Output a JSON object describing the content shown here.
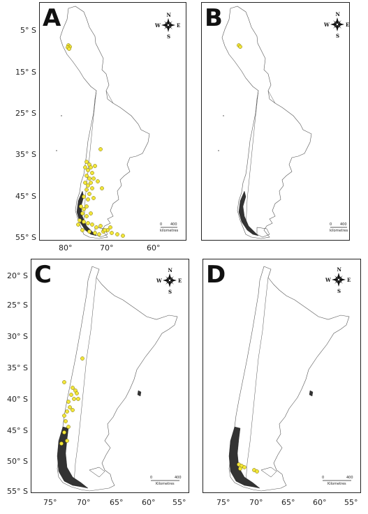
{
  "figure": {
    "panels": [
      {
        "id": "A",
        "label": "A",
        "y_ticks": [
          "5° S",
          "15° S",
          "25° S",
          "35° S",
          "45° S",
          "55° S"
        ],
        "x_ticks": [
          "80°",
          "70°",
          "60°"
        ],
        "compass": {
          "n": "N",
          "s": "S",
          "e": "E",
          "w": "W"
        },
        "scale": {
          "zero": "0",
          "max": "400",
          "unit": "kilometres"
        },
        "occurrence_color": "#f2e63a"
      },
      {
        "id": "B",
        "label": "B",
        "compass": {
          "n": "N",
          "s": "S",
          "e": "E",
          "w": "W"
        },
        "scale": {
          "zero": "0",
          "max": "400",
          "unit": "kilometres"
        },
        "occurrence_color": "#f2e63a"
      },
      {
        "id": "C",
        "label": "C",
        "y_ticks": [
          "20° S",
          "25° S",
          "30° S",
          "35° S",
          "40° S",
          "45° S",
          "50° S",
          "55° S"
        ],
        "x_ticks": [
          "75°",
          "70°",
          "65°",
          "60°",
          "55°"
        ],
        "compass": {
          "n": "N",
          "s": "S",
          "e": "E",
          "w": "W"
        },
        "scale": {
          "zero": "0",
          "max": "400",
          "unit": "Kilometres"
        },
        "occurrence_color": "#f2e63a"
      },
      {
        "id": "D",
        "label": "D",
        "x_ticks": [
          "75°",
          "70°",
          "65°",
          "60°",
          "55°"
        ],
        "compass": {
          "n": "N",
          "s": "S",
          "e": "E",
          "w": "W"
        },
        "scale": {
          "zero": "0",
          "max": "400",
          "unit": "Kilometres"
        },
        "occurrence_color": "#f2e63a"
      }
    ]
  }
}
